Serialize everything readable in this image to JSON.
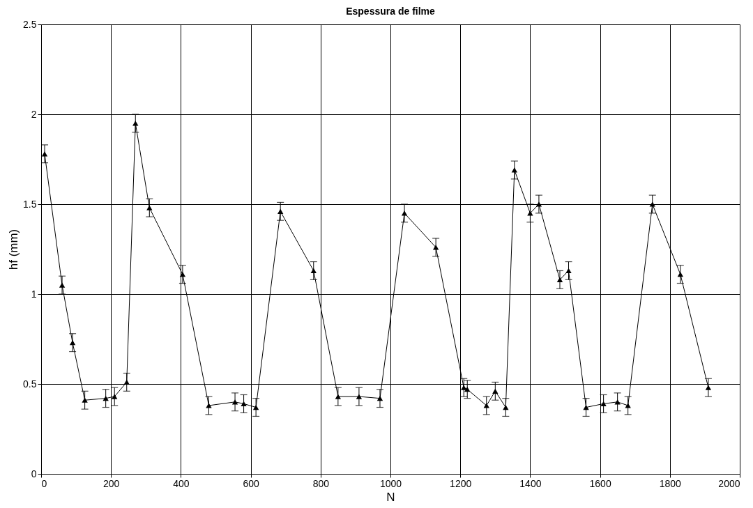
{
  "chart_data": {
    "type": "line",
    "title": "Espessura de filme",
    "xlabel": "N",
    "ylabel": "hf (mm)",
    "xlim": [
      0,
      2000
    ],
    "xticks": [
      0,
      200,
      400,
      600,
      800,
      1000,
      1200,
      1400,
      1600,
      1800,
      2000
    ],
    "ylim": [
      0,
      2.5
    ],
    "yticks": [
      0,
      0.5,
      1,
      1.5,
      2,
      2.5
    ],
    "grid": true,
    "marker": "triangle",
    "line_style": "solid",
    "series": [
      {
        "color": "#000000",
        "x": [
          10,
          60,
          90,
          125,
          185,
          210,
          245,
          270,
          310,
          405,
          480,
          555,
          580,
          615,
          685,
          780,
          850,
          910,
          970,
          1040,
          1130,
          1210,
          1220,
          1275,
          1300,
          1330,
          1355,
          1400,
          1425,
          1485,
          1510,
          1560,
          1610,
          1650,
          1680,
          1750,
          1830,
          1910
        ],
        "values": [
          1.78,
          1.05,
          0.73,
          0.41,
          0.42,
          0.43,
          0.51,
          1.95,
          1.48,
          1.11,
          0.38,
          0.4,
          0.39,
          0.37,
          1.46,
          1.13,
          0.43,
          0.43,
          0.42,
          1.45,
          1.26,
          0.48,
          0.47,
          0.38,
          0.46,
          0.37,
          1.69,
          1.45,
          1.5,
          1.08,
          1.13,
          0.37,
          0.39,
          0.4,
          0.38,
          1.5,
          1.11,
          0.48
        ],
        "errors": [
          0.05,
          0.05,
          0.05,
          0.05,
          0.05,
          0.05,
          0.05,
          0.05,
          0.05,
          0.05,
          0.05,
          0.05,
          0.05,
          0.05,
          0.05,
          0.05,
          0.05,
          0.05,
          0.05,
          0.05,
          0.05,
          0.05,
          0.05,
          0.05,
          0.05,
          0.05,
          0.05,
          0.05,
          0.05,
          0.05,
          0.05,
          0.05,
          0.05,
          0.05,
          0.05,
          0.05,
          0.05,
          0.05
        ]
      }
    ]
  }
}
